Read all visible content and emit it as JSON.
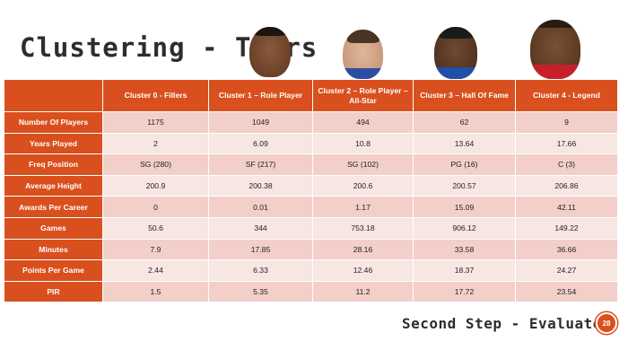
{
  "slide": {
    "title": "Clustering - Tiers",
    "footer_title": "Second Step - Evaluate",
    "page_number": "28"
  },
  "table": {
    "header": {
      "corner": "",
      "columns": [
        "Cluster 0 - Fillers",
        "Cluster 1 – Role Player",
        "Cluster 2 – Role Player – All-Star",
        "Cluster 3 – Hall Of Fame",
        "Cluster 4 - Legend"
      ]
    },
    "rows": [
      {
        "label": "Number Of Players",
        "values": [
          "1175",
          "1049",
          "494",
          "62",
          "9"
        ]
      },
      {
        "label": "Years Played",
        "values": [
          "2",
          "6.09",
          "10.8",
          "13.64",
          "17.66"
        ]
      },
      {
        "label": "Freq Position",
        "values": [
          "SG (280)",
          "SF (217)",
          "SG (102)",
          "PG (16)",
          "C (3)"
        ]
      },
      {
        "label": "Average Height",
        "values": [
          "200.9",
          "200.38",
          "200.6",
          "200.57",
          "206.86"
        ]
      },
      {
        "label": "Awards Per Career",
        "values": [
          "0",
          "0.01",
          "1.17",
          "15.09",
          "42.11"
        ]
      },
      {
        "label": "Games",
        "values": [
          "50.6",
          "344",
          "753.18",
          "906.12",
          "149.22"
        ]
      },
      {
        "label": "Minutes",
        "values": [
          "7.9",
          "17.85",
          "28.16",
          "33.58",
          "36.66"
        ]
      },
      {
        "label": "Points Per Game",
        "values": [
          "2.44",
          "6.33",
          "12.46",
          "18.37",
          "24.27"
        ]
      },
      {
        "label": "PIR",
        "values": [
          "1.5",
          "5.35",
          "11.2",
          "17.72",
          "23.54"
        ]
      }
    ]
  },
  "colors": {
    "accent": "#d9501e",
    "row_odd": "#f3cfc9",
    "row_even": "#f8e6e3",
    "title_text": "#2d2d2d"
  }
}
